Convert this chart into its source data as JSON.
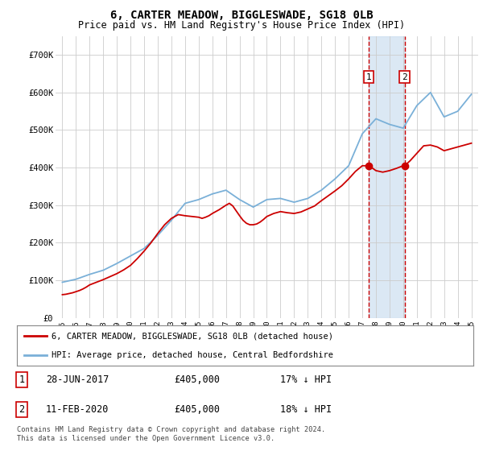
{
  "title": "6, CARTER MEADOW, BIGGLESWADE, SG18 0LB",
  "subtitle": "Price paid vs. HM Land Registry's House Price Index (HPI)",
  "legend_line1": "6, CARTER MEADOW, BIGGLESWADE, SG18 0LB (detached house)",
  "legend_line2": "HPI: Average price, detached house, Central Bedfordshire",
  "footnote": "Contains HM Land Registry data © Crown copyright and database right 2024.\nThis data is licensed under the Open Government Licence v3.0.",
  "transaction1_date": "28-JUN-2017",
  "transaction1_price": "£405,000",
  "transaction1_hpi": "17% ↓ HPI",
  "transaction2_date": "11-FEB-2020",
  "transaction2_price": "£405,000",
  "transaction2_hpi": "18% ↓ HPI",
  "hpi_color": "#7ab0d8",
  "price_color": "#cc0000",
  "marker_color": "#cc0000",
  "vline_color": "#cc0000",
  "shade_color": "#ccdff0",
  "background_color": "#ffffff",
  "grid_color": "#cccccc",
  "years": [
    1995,
    1996,
    1997,
    1998,
    1999,
    2000,
    2001,
    2002,
    2003,
    2004,
    2005,
    2006,
    2007,
    2008,
    2009,
    2010,
    2011,
    2012,
    2013,
    2014,
    2015,
    2016,
    2017,
    2018,
    2019,
    2020,
    2021,
    2022,
    2023,
    2024,
    2025
  ],
  "hpi_values": [
    95000,
    103000,
    116000,
    127000,
    145000,
    165000,
    185000,
    220000,
    260000,
    305000,
    315000,
    330000,
    340000,
    315000,
    295000,
    315000,
    318000,
    308000,
    318000,
    340000,
    370000,
    405000,
    490000,
    530000,
    515000,
    505000,
    565000,
    600000,
    535000,
    550000,
    595000
  ],
  "price_data_x": [
    1995.0,
    1995.25,
    1995.5,
    1995.75,
    1996.0,
    1996.25,
    1996.5,
    1996.75,
    1997.0,
    1997.5,
    1998.0,
    1998.5,
    1999.0,
    1999.5,
    2000.0,
    2000.5,
    2001.0,
    2001.5,
    2002.0,
    2002.5,
    2003.0,
    2003.5,
    2004.0,
    2004.5,
    2005.0,
    2005.25,
    2005.5,
    2005.75,
    2006.0,
    2006.5,
    2007.0,
    2007.25,
    2007.5,
    2007.75,
    2008.0,
    2008.25,
    2008.5,
    2008.75,
    2009.0,
    2009.25,
    2009.5,
    2009.75,
    2010.0,
    2010.5,
    2011.0,
    2011.5,
    2012.0,
    2012.5,
    2013.0,
    2013.5,
    2014.0,
    2014.5,
    2015.0,
    2015.5,
    2016.0,
    2016.5,
    2017.0,
    2017.49,
    2017.5,
    2018.0,
    2018.5,
    2019.0,
    2019.5,
    2020.0,
    2020.1,
    2020.5,
    2021.0,
    2021.5,
    2022.0,
    2022.5,
    2023.0,
    2023.5,
    2024.0,
    2024.5,
    2025.0
  ],
  "price_data_y": [
    62000,
    63000,
    65000,
    67000,
    70000,
    73000,
    77000,
    82000,
    88000,
    95000,
    102000,
    110000,
    118000,
    128000,
    140000,
    158000,
    178000,
    200000,
    225000,
    248000,
    265000,
    275000,
    272000,
    270000,
    268000,
    265000,
    268000,
    272000,
    278000,
    288000,
    300000,
    305000,
    298000,
    285000,
    272000,
    260000,
    252000,
    248000,
    248000,
    250000,
    255000,
    262000,
    270000,
    278000,
    283000,
    280000,
    278000,
    282000,
    290000,
    298000,
    312000,
    325000,
    338000,
    352000,
    370000,
    390000,
    405000,
    405000,
    405000,
    392000,
    388000,
    392000,
    398000,
    405000,
    405000,
    418000,
    438000,
    458000,
    460000,
    455000,
    445000,
    450000,
    455000,
    460000,
    465000
  ],
  "transaction1_x": 2017.49,
  "transaction2_x": 2020.1,
  "transaction1_y": 405000,
  "transaction2_y": 405000,
  "vline1_x": 2017.49,
  "vline2_x": 2020.1,
  "shade1_x0": 2017.49,
  "shade1_x1": 2020.1,
  "ylim": [
    0,
    750000
  ],
  "yticks": [
    0,
    100000,
    200000,
    300000,
    400000,
    500000,
    600000,
    700000
  ],
  "ytick_labels": [
    "£0",
    "£100K",
    "£200K",
    "£300K",
    "£400K",
    "£500K",
    "£600K",
    "£700K"
  ],
  "xlim": [
    1994.5,
    2025.5
  ],
  "xticks": [
    1995,
    1996,
    1997,
    1998,
    1999,
    2000,
    2001,
    2002,
    2003,
    2004,
    2005,
    2006,
    2007,
    2008,
    2009,
    2010,
    2011,
    2012,
    2013,
    2014,
    2015,
    2016,
    2017,
    2018,
    2019,
    2020,
    2021,
    2022,
    2023,
    2024,
    2025
  ]
}
